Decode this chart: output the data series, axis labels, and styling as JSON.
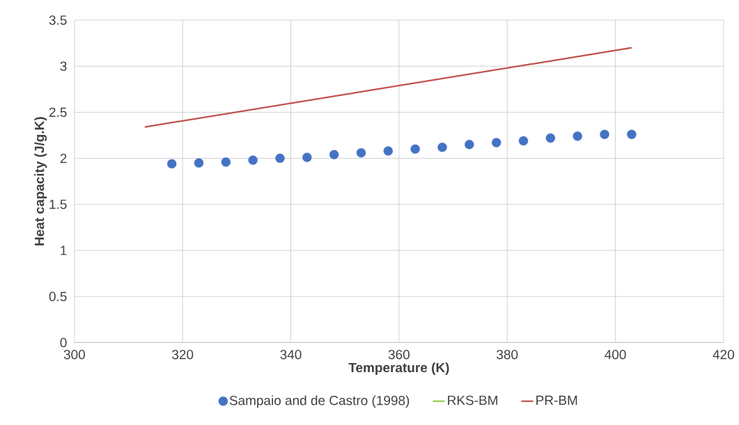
{
  "chart_data": {
    "type": "scatter",
    "xlabel": "Temperature (K)",
    "ylabel": "Heat capacity (J/g.K)",
    "xlim": [
      300,
      420
    ],
    "xticks": [
      300,
      320,
      340,
      360,
      380,
      400,
      420
    ],
    "ylim": [
      0,
      3.5
    ],
    "yticks": [
      0,
      0.5,
      1,
      1.5,
      2,
      2.5,
      3,
      3.5
    ],
    "grid": true,
    "legend": "bottom",
    "series": [
      {
        "name": "Sampaio and de Castro (1998)",
        "marker": "circle",
        "color": "#4472c4",
        "x": [
          318,
          323,
          328,
          333,
          338,
          343,
          348,
          353,
          358,
          363,
          368,
          373,
          378,
          383,
          388,
          393,
          398,
          403
        ],
        "values": [
          1.94,
          1.95,
          1.96,
          1.98,
          2.0,
          2.01,
          2.04,
          2.06,
          2.08,
          2.1,
          2.12,
          2.15,
          2.17,
          2.19,
          2.22,
          2.24,
          2.26,
          2.26
        ]
      },
      {
        "name": "RKS-BM",
        "type": "line",
        "marker": "none",
        "color": "#92d050"
      },
      {
        "name": "PR-BM",
        "type": "line",
        "marker": "none",
        "color": "#c0504d",
        "x": [
          313,
          403
        ],
        "values": [
          2.34,
          3.2
        ]
      }
    ]
  }
}
